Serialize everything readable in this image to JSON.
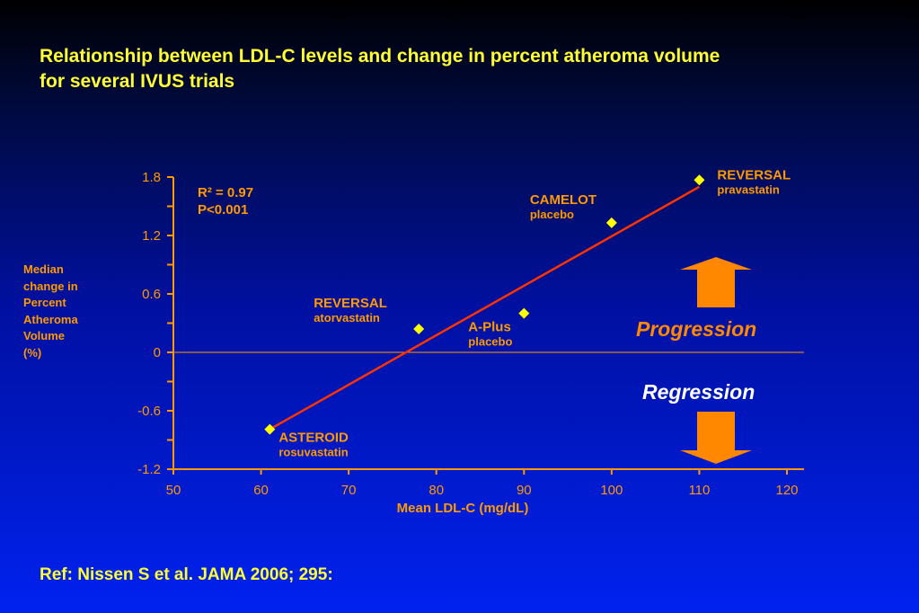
{
  "title": {
    "line1": "Relationship between LDL-C levels and change in percent atheroma volume",
    "line2": "for several IVUS trials"
  },
  "reference": "Ref: Nissen S et al. JAMA 2006; 295:",
  "stats": {
    "r2": "R² = 0.97",
    "p": "P<0.001"
  },
  "annotations": {
    "progression": "Progression",
    "regression": "Regression"
  },
  "colors": {
    "text_accent": "#ff9900",
    "title": "#ffff33",
    "marker": "#ffff00",
    "trend_line": "#ff3300",
    "arrow": "#ff8800",
    "axis": "#ff9900",
    "text_white": "#ffffff"
  },
  "chart_data": {
    "type": "scatter",
    "xlabel": "Mean LDL-C (mg/dL)",
    "ylabel_lines": [
      "Median",
      "change in",
      "Percent",
      "Atheroma",
      "Volume",
      "(%)"
    ],
    "xlim": [
      50,
      120
    ],
    "ylim": [
      -1.2,
      1.8
    ],
    "x_ticks": [
      50,
      60,
      70,
      80,
      90,
      100,
      110,
      120
    ],
    "y_ticks": [
      -1.2,
      -0.6,
      0,
      0.6,
      1.2,
      1.8
    ],
    "y_tick_labels": [
      "-1.2",
      "-0.6",
      "0",
      "0.6",
      "1.2",
      "1.8"
    ],
    "points": [
      {
        "trial": "ASTEROID",
        "arm": "rosuvastatin",
        "x": 61,
        "y": -0.79
      },
      {
        "trial": "REVERSAL",
        "arm": "atorvastatin",
        "x": 78,
        "y": 0.24
      },
      {
        "trial": "A-Plus",
        "arm": "placebo",
        "x": 90,
        "y": 0.4
      },
      {
        "trial": "CAMELOT",
        "arm": "placebo",
        "x": 100,
        "y": 1.33
      },
      {
        "trial": "REVERSAL",
        "arm": "pravastatin",
        "x": 110,
        "y": 1.77
      }
    ],
    "trend_line": [
      {
        "x": 61,
        "y": -0.79
      },
      {
        "x": 110,
        "y": 1.7
      }
    ],
    "zero_reference_line": true,
    "grid": false
  }
}
